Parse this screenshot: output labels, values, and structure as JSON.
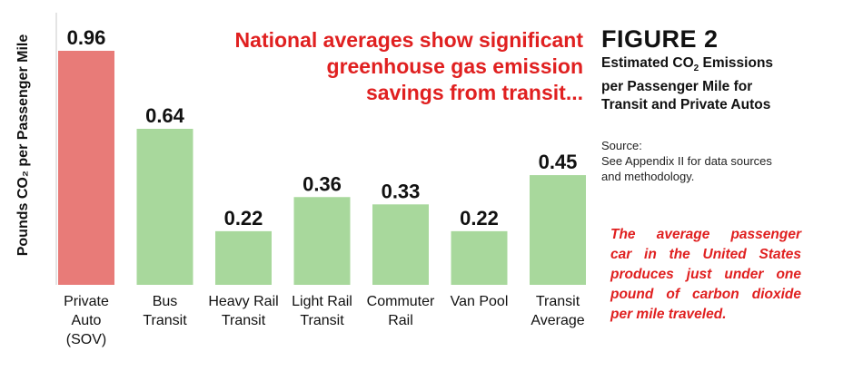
{
  "chart_data": {
    "type": "bar",
    "ylabel": "Pounds CO₂ per Passenger Mile",
    "ylim": [
      0,
      1.0
    ],
    "grid": false,
    "categories": [
      [
        "Private",
        "Auto",
        "(SOV)"
      ],
      [
        "Bus",
        "Transit"
      ],
      [
        "Heavy Rail",
        "Transit"
      ],
      [
        "Light Rail",
        "Transit"
      ],
      [
        "Commuter",
        "Rail"
      ],
      [
        "Van Pool"
      ],
      [
        "Transit",
        "Average"
      ]
    ],
    "values": [
      0.96,
      0.64,
      0.22,
      0.36,
      0.33,
      0.22,
      0.45
    ],
    "value_labels": [
      "0.96",
      "0.64",
      "0.22",
      "0.36",
      "0.33",
      "0.22",
      "0.45"
    ],
    "colors": [
      "#e87b78",
      "#a8d89c",
      "#a8d89c",
      "#a8d89c",
      "#a8d89c",
      "#a8d89c",
      "#a8d89c"
    ]
  },
  "headline": [
    "National averages show significant",
    "greenhouse gas emission",
    "savings from transit..."
  ],
  "figure": {
    "title": "FIGURE 2",
    "subtitle_line1_pre": "Estimated CO",
    "subtitle_line1_sub": "2",
    "subtitle_line1_post": " Emissions",
    "subtitle_line2": "per Passenger Mile for",
    "subtitle_line3": "Transit and Private Autos"
  },
  "source": {
    "label": "Source:",
    "line1": "See Appendix II for data sources",
    "line2": "and methodology."
  },
  "callout": [
    "The average passenger",
    "car in the United States",
    "produces just under one",
    "pound of carbon dioxide",
    "per mile traveled."
  ],
  "colors": {
    "accent_red": "#e02020",
    "auto_bar": "#e87b78",
    "transit_bar": "#a8d89c"
  }
}
